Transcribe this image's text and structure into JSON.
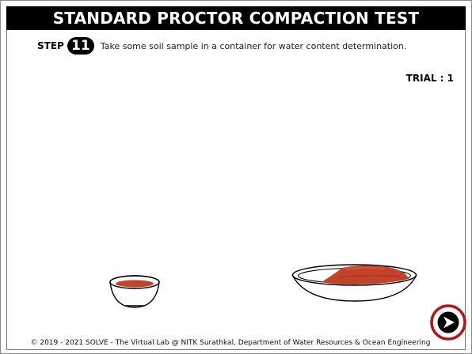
{
  "header": {
    "title": "STANDARD PROCTOR COMPACTION TEST"
  },
  "step": {
    "label": "STEP",
    "number": "11",
    "instruction": "Take some soil sample in a container for water content determination."
  },
  "trial": {
    "text": "TRIAL : 1"
  },
  "apparatus": {
    "small_bowl_icon": "bowl-with-soil",
    "large_dish_icon": "tray-with-soil",
    "soil_color": "#c0432a"
  },
  "navigation": {
    "next_icon": "arrow-right-circle",
    "ring_color": "#b01818"
  },
  "footer": {
    "copyright": "© 2019 - 2021 SOLVE - The Virtual Lab @ NITK Surathkal, Department of Water Resources & Ocean Engineering"
  }
}
